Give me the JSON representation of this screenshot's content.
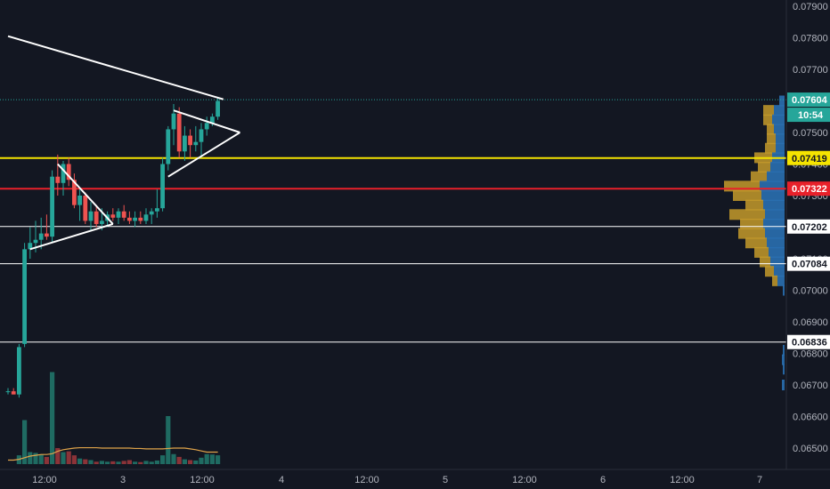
{
  "colors": {
    "background": "#131722",
    "up": "#26a69a",
    "down": "#ef5350",
    "trend_white": "#ffffff",
    "level_yellow": "#f5e400",
    "level_red": "#e8202a",
    "level_white": "#ffffff",
    "volume_up": "#1f6b62",
    "volume_down": "#8b3338",
    "vma": "#e0a44a",
    "vp_blue": "#2a6fb0",
    "vp_gold": "#c49a2a",
    "last_price_line": "#26a69a"
  },
  "price_scale": {
    "labels": [
      "0.07900",
      "0.07800",
      "0.07700",
      "0.07600",
      "0.07500",
      "0.07400",
      "0.07300",
      "0.07200",
      "0.07100",
      "0.07000",
      "0.06900",
      "0.06800",
      "0.06700",
      "0.06600",
      "0.06500"
    ],
    "values": [
      0.079,
      0.078,
      0.077,
      0.076,
      0.075,
      0.074,
      0.073,
      0.072,
      0.071,
      0.07,
      0.069,
      0.068,
      0.067,
      0.066,
      0.065
    ]
  },
  "time_scale": {
    "labels": [
      "12:00",
      "3",
      "12:00",
      "4",
      "12:00",
      "5",
      "12:00",
      "6",
      "12:00",
      "7"
    ]
  },
  "tags": {
    "last_price": "0.07604",
    "countdown": "10:54",
    "yellow_level": "0.07419",
    "red_level": "0.07322",
    "white_level_1": "0.07202",
    "white_level_2": "0.07084",
    "white_level_3": "0.06836"
  },
  "chart_data": {
    "type": "candlestick",
    "price_levels": {
      "yellow": 0.07419,
      "red": 0.07322,
      "white": [
        0.07202,
        0.07084,
        0.06836
      ],
      "last": 0.07604
    },
    "candles": [
      {
        "o": 0.0668,
        "h": 0.0669,
        "l": 0.0667,
        "c": 0.0668
      },
      {
        "o": 0.0668,
        "h": 0.0669,
        "l": 0.0667,
        "c": 0.0667
      },
      {
        "o": 0.0667,
        "h": 0.0683,
        "l": 0.0666,
        "c": 0.0682
      },
      {
        "o": 0.0683,
        "h": 0.0715,
        "l": 0.0682,
        "c": 0.0713
      },
      {
        "o": 0.0713,
        "h": 0.072,
        "l": 0.071,
        "c": 0.0715
      },
      {
        "o": 0.0715,
        "h": 0.0722,
        "l": 0.0712,
        "c": 0.0716
      },
      {
        "o": 0.0716,
        "h": 0.0723,
        "l": 0.0713,
        "c": 0.0718
      },
      {
        "o": 0.0718,
        "h": 0.0724,
        "l": 0.0716,
        "c": 0.0717
      },
      {
        "o": 0.0717,
        "h": 0.0738,
        "l": 0.0715,
        "c": 0.0736
      },
      {
        "o": 0.0736,
        "h": 0.0743,
        "l": 0.073,
        "c": 0.0734
      },
      {
        "o": 0.0734,
        "h": 0.0741,
        "l": 0.073,
        "c": 0.074
      },
      {
        "o": 0.074,
        "h": 0.0742,
        "l": 0.0733,
        "c": 0.0735
      },
      {
        "o": 0.0735,
        "h": 0.0737,
        "l": 0.0726,
        "c": 0.0727
      },
      {
        "o": 0.0727,
        "h": 0.0732,
        "l": 0.0722,
        "c": 0.073
      },
      {
        "o": 0.073,
        "h": 0.0731,
        "l": 0.0721,
        "c": 0.0722
      },
      {
        "o": 0.0722,
        "h": 0.0728,
        "l": 0.0719,
        "c": 0.0725
      },
      {
        "o": 0.0725,
        "h": 0.0727,
        "l": 0.072,
        "c": 0.0721
      },
      {
        "o": 0.0721,
        "h": 0.0726,
        "l": 0.0719,
        "c": 0.0722
      },
      {
        "o": 0.0722,
        "h": 0.0725,
        "l": 0.072,
        "c": 0.0724
      },
      {
        "o": 0.0724,
        "h": 0.0726,
        "l": 0.0722,
        "c": 0.0723
      },
      {
        "o": 0.0723,
        "h": 0.0726,
        "l": 0.0721,
        "c": 0.0725
      },
      {
        "o": 0.0725,
        "h": 0.0727,
        "l": 0.0722,
        "c": 0.0723
      },
      {
        "o": 0.0723,
        "h": 0.0725,
        "l": 0.0721,
        "c": 0.0722
      },
      {
        "o": 0.0722,
        "h": 0.0725,
        "l": 0.072,
        "c": 0.0723
      },
      {
        "o": 0.0723,
        "h": 0.0725,
        "l": 0.0721,
        "c": 0.0722
      },
      {
        "o": 0.0722,
        "h": 0.0726,
        "l": 0.0721,
        "c": 0.0724
      },
      {
        "o": 0.0724,
        "h": 0.0726,
        "l": 0.0721,
        "c": 0.0725
      },
      {
        "o": 0.0725,
        "h": 0.0732,
        "l": 0.0723,
        "c": 0.0726
      },
      {
        "o": 0.0726,
        "h": 0.0742,
        "l": 0.0725,
        "c": 0.074
      },
      {
        "o": 0.074,
        "h": 0.0752,
        "l": 0.0738,
        "c": 0.0751
      },
      {
        "o": 0.0751,
        "h": 0.0759,
        "l": 0.0746,
        "c": 0.0756
      },
      {
        "o": 0.0756,
        "h": 0.0758,
        "l": 0.0742,
        "c": 0.0744
      },
      {
        "o": 0.0744,
        "h": 0.0752,
        "l": 0.0741,
        "c": 0.0749
      },
      {
        "o": 0.0749,
        "h": 0.0751,
        "l": 0.0742,
        "c": 0.0746
      },
      {
        "o": 0.0746,
        "h": 0.0752,
        "l": 0.0744,
        "c": 0.0747
      },
      {
        "o": 0.0747,
        "h": 0.0753,
        "l": 0.0742,
        "c": 0.0751
      },
      {
        "o": 0.0751,
        "h": 0.0755,
        "l": 0.0749,
        "c": 0.0753
      },
      {
        "o": 0.0753,
        "h": 0.0756,
        "l": 0.0752,
        "c": 0.0755
      },
      {
        "o": 0.0755,
        "h": 0.0761,
        "l": 0.0754,
        "c": 0.076
      }
    ],
    "volumes": [
      0,
      0,
      22,
      110,
      30,
      28,
      24,
      18,
      230,
      40,
      30,
      32,
      22,
      14,
      12,
      10,
      6,
      8,
      6,
      7,
      6,
      8,
      10,
      6,
      5,
      8,
      6,
      9,
      22,
      120,
      25,
      18,
      12,
      10,
      9,
      16,
      25,
      24,
      22
    ],
    "volume_ma": [
      10,
      10,
      12,
      16,
      20,
      22,
      24,
      24,
      26,
      32,
      36,
      38,
      40,
      41,
      41,
      41,
      41,
      40,
      40,
      40,
      40,
      40,
      40,
      39,
      39,
      38,
      38,
      38,
      38,
      39,
      40,
      40,
      40,
      38,
      36,
      33,
      30,
      30,
      30
    ],
    "volume_profile": [
      {
        "price": 0.076,
        "up": 6,
        "down": 0
      },
      {
        "price": 0.0757,
        "up": 12,
        "down": 12
      },
      {
        "price": 0.0754,
        "up": 14,
        "down": 10
      },
      {
        "price": 0.0751,
        "up": 12,
        "down": 8
      },
      {
        "price": 0.0748,
        "up": 10,
        "down": 10
      },
      {
        "price": 0.0745,
        "up": 10,
        "down": 12
      },
      {
        "price": 0.0742,
        "up": 14,
        "down": 20
      },
      {
        "price": 0.0739,
        "up": 16,
        "down": 14
      },
      {
        "price": 0.0736,
        "up": 20,
        "down": 18
      },
      {
        "price": 0.0733,
        "up": 28,
        "down": 40
      },
      {
        "price": 0.073,
        "up": 26,
        "down": 32
      },
      {
        "price": 0.0727,
        "up": 24,
        "down": 20
      },
      {
        "price": 0.0724,
        "up": 22,
        "down": 40
      },
      {
        "price": 0.0721,
        "up": 24,
        "down": 26
      },
      {
        "price": 0.0718,
        "up": 22,
        "down": 30
      },
      {
        "price": 0.0715,
        "up": 20,
        "down": 24
      },
      {
        "price": 0.0712,
        "up": 18,
        "down": 16
      },
      {
        "price": 0.0709,
        "up": 16,
        "down": 12
      },
      {
        "price": 0.0706,
        "up": 12,
        "down": 10
      },
      {
        "price": 0.0703,
        "up": 8,
        "down": 6
      },
      {
        "price": 0.07,
        "up": 2,
        "down": 0
      },
      {
        "price": 0.0681,
        "up": 2,
        "down": 0
      },
      {
        "price": 0.0678,
        "up": 3,
        "down": 0
      },
      {
        "price": 0.0675,
        "up": 2,
        "down": 0
      },
      {
        "price": 0.067,
        "up": 3,
        "down": 0
      }
    ],
    "trendlines": [
      {
        "name": "descending-resistance",
        "points": [
          [
            0,
            0.07805
          ],
          [
            39,
            0.07605
          ]
        ]
      },
      {
        "name": "pennant-1-upper",
        "points": [
          [
            9,
            0.074
          ],
          [
            19,
            0.0721
          ]
        ]
      },
      {
        "name": "pennant-1-lower",
        "points": [
          [
            4,
            0.0713
          ],
          [
            19,
            0.0721
          ]
        ]
      },
      {
        "name": "pennant-2-upper",
        "points": [
          [
            30,
            0.0757
          ],
          [
            42,
            0.075
          ]
        ]
      },
      {
        "name": "pennant-2-lower",
        "points": [
          [
            29,
            0.0736
          ],
          [
            42,
            0.075
          ]
        ]
      }
    ]
  }
}
